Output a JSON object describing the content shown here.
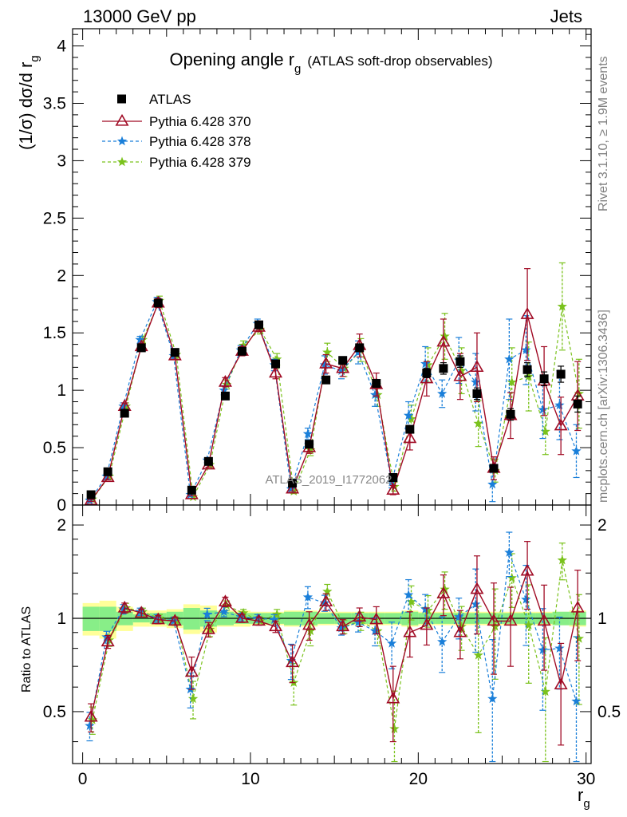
{
  "header": {
    "left": "13000 GeV pp",
    "right": "Jets"
  },
  "side_labels": {
    "rivet": "Rivet 3.1.10, ≥ 1.9M events",
    "mcplots": "mcplots.cern.ch [arXiv:1306.3436]"
  },
  "watermark": "ATLAS_2019_I1772062",
  "colors": {
    "data": "#000000",
    "py370": "#a00a24",
    "py378": "#1a7fd9",
    "py379": "#7ac21c",
    "band_inner": "#88ee88",
    "band_outer": "#ffff99"
  },
  "chart_data": [
    {
      "type": "scatter",
      "panel": "main",
      "title": "Opening angle r",
      "title_sub": "g",
      "title_suffix": "(ATLAS soft-drop observables)",
      "ylabel": "(1/σ) dσ/d r",
      "ylabel_sub": "g",
      "xlim": [
        -0.6,
        30.3
      ],
      "ylim": [
        0,
        4.15
      ],
      "yticks": [
        0,
        0.5,
        1,
        1.5,
        2,
        2.5,
        3,
        3.5,
        4
      ],
      "ytick_labels": [
        "0",
        "0.5",
        "1",
        "1.5",
        "2",
        "2.5",
        "3",
        "3.5",
        "4"
      ],
      "legend_placement": "top-left",
      "x": [
        0.5,
        1.5,
        2.5,
        3.5,
        4.5,
        5.5,
        6.5,
        7.5,
        8.5,
        9.5,
        10.5,
        11.5,
        12.5,
        13.5,
        14.5,
        15.5,
        16.5,
        17.5,
        18.5,
        19.5,
        20.5,
        21.5,
        22.5,
        23.5,
        24.5,
        25.5,
        26.5,
        27.5,
        28.5,
        29.5
      ],
      "series": [
        {
          "name": "ATLAS",
          "marker": "square",
          "values": [
            0.09,
            0.29,
            0.8,
            1.37,
            1.76,
            1.33,
            0.13,
            0.38,
            0.95,
            1.34,
            1.57,
            1.23,
            0.19,
            0.53,
            1.09,
            1.26,
            1.37,
            1.06,
            0.24,
            0.66,
            1.15,
            1.19,
            1.25,
            0.97,
            0.32,
            0.79,
            1.18,
            1.1,
            1.14,
            0.88
          ],
          "errors": [
            0.01,
            0.01,
            0.02,
            0.02,
            0.03,
            0.02,
            0.01,
            0.02,
            0.02,
            0.02,
            0.02,
            0.02,
            0.01,
            0.02,
            0.03,
            0.03,
            0.03,
            0.03,
            0.02,
            0.03,
            0.04,
            0.05,
            0.05,
            0.05,
            0.03,
            0.05,
            0.06,
            0.06,
            0.07,
            0.07
          ]
        },
        {
          "name": "Pythia 6.428 370",
          "marker": "triangle-open",
          "line": "solid",
          "values": [
            0.04,
            0.24,
            0.86,
            1.38,
            1.76,
            1.3,
            0.09,
            0.35,
            1.07,
            1.34,
            1.55,
            1.15,
            0.14,
            0.5,
            1.23,
            1.19,
            1.39,
            1.05,
            0.13,
            0.58,
            1.1,
            1.42,
            1.12,
            1.2,
            0.32,
            0.78,
            1.66,
            1.08,
            0.69,
            0.95
          ],
          "errors": [
            0.01,
            0.02,
            0.03,
            0.03,
            0.04,
            0.03,
            0.01,
            0.02,
            0.04,
            0.04,
            0.04,
            0.05,
            0.02,
            0.05,
            0.08,
            0.07,
            0.1,
            0.1,
            0.04,
            0.1,
            0.15,
            0.2,
            0.2,
            0.3,
            0.1,
            0.2,
            0.4,
            0.3,
            0.25,
            0.3
          ]
        },
        {
          "name": "Pythia 6.428 378",
          "marker": "star",
          "line": "dashed",
          "values": [
            0.04,
            0.25,
            0.86,
            1.44,
            1.77,
            1.3,
            0.09,
            0.39,
            1.0,
            1.35,
            1.58,
            1.22,
            0.14,
            0.62,
            1.22,
            1.17,
            1.33,
            0.96,
            0.2,
            0.78,
            1.23,
            0.97,
            1.26,
            1.07,
            0.18,
            1.27,
            1.35,
            0.83,
            0.87,
            0.47
          ],
          "errors": [
            0.01,
            0.02,
            0.03,
            0.03,
            0.04,
            0.03,
            0.01,
            0.02,
            0.04,
            0.04,
            0.04,
            0.05,
            0.02,
            0.05,
            0.08,
            0.07,
            0.1,
            0.1,
            0.05,
            0.12,
            0.15,
            0.12,
            0.2,
            0.25,
            0.15,
            0.35,
            0.3,
            0.25,
            0.3,
            0.23
          ]
        },
        {
          "name": "Pythia 6.428 379",
          "marker": "star",
          "line": "dashed",
          "values": [
            0.05,
            0.25,
            0.86,
            1.44,
            1.78,
            1.31,
            0.07,
            0.35,
            1.05,
            1.39,
            1.53,
            1.27,
            0.12,
            0.48,
            1.33,
            1.19,
            1.35,
            0.96,
            0.16,
            0.75,
            1.22,
            1.47,
            1.17,
            0.71,
            0.3,
            1.07,
            1.12,
            0.64,
            1.73,
            0.97
          ],
          "errors": [
            0.01,
            0.02,
            0.03,
            0.03,
            0.04,
            0.03,
            0.01,
            0.02,
            0.04,
            0.04,
            0.04,
            0.05,
            0.02,
            0.05,
            0.08,
            0.07,
            0.1,
            0.1,
            0.04,
            0.12,
            0.15,
            0.2,
            0.2,
            0.2,
            0.1,
            0.3,
            0.3,
            0.2,
            0.38,
            0.3
          ]
        }
      ]
    },
    {
      "type": "scatter",
      "panel": "ratio",
      "xlabel": "r",
      "xlabel_sub": "g",
      "ylabel": "Ratio to ATLAS",
      "xlim": [
        -0.6,
        30.3
      ],
      "ylim": [
        0.34,
        2.32
      ],
      "log_y": true,
      "yticks": [
        0.5,
        1,
        2
      ],
      "ytick_labels": [
        "0.5",
        "1",
        "2"
      ],
      "xticks": [
        0,
        10,
        20,
        30
      ],
      "xtick_labels": [
        "0",
        "10",
        "20",
        "30"
      ],
      "reference_line": 1,
      "band_inner_halfwidth": [
        0.09,
        0.09,
        0.05,
        0.03,
        0.04,
        0.05,
        0.08,
        0.06,
        0.05,
        0.04,
        0.04,
        0.04,
        0.05,
        0.05,
        0.04,
        0.04,
        0.04,
        0.04,
        0.04,
        0.05,
        0.04,
        0.04,
        0.04,
        0.04,
        0.04,
        0.04,
        0.04,
        0.04,
        0.05,
        0.05
      ],
      "band_outer_halfwidth": [
        0.12,
        0.14,
        0.09,
        0.06,
        0.06,
        0.07,
        0.11,
        0.1,
        0.06,
        0.06,
        0.05,
        0.05,
        0.06,
        0.06,
        0.05,
        0.05,
        0.05,
        0.05,
        0.05,
        0.06,
        0.05,
        0.05,
        0.05,
        0.05,
        0.05,
        0.05,
        0.05,
        0.05,
        0.05,
        0.06
      ],
      "series": [
        {
          "name": "Pythia 6.428 370",
          "values": [
            0.48,
            0.84,
            1.08,
            1.04,
            0.99,
            0.98,
            0.67,
            0.92,
            1.13,
            1.0,
            0.98,
            0.94,
            0.72,
            0.95,
            1.13,
            0.94,
            1.01,
            0.99,
            0.55,
            0.9,
            0.95,
            1.2,
            0.9,
            1.24,
            0.98,
            0.98,
            1.42,
            0.98,
            0.61,
            1.08
          ],
          "errors": [
            0.05,
            0.04,
            0.04,
            0.03,
            0.03,
            0.03,
            0.08,
            0.05,
            0.04,
            0.03,
            0.03,
            0.04,
            0.1,
            0.1,
            0.07,
            0.05,
            0.07,
            0.1,
            0.15,
            0.15,
            0.13,
            0.18,
            0.16,
            0.35,
            0.32,
            0.28,
            0.35,
            0.3,
            0.22,
            0.35
          ]
        },
        {
          "name": "Pythia 6.428 378",
          "values": [
            0.45,
            0.87,
            1.07,
            1.05,
            1.0,
            0.98,
            0.59,
            1.03,
            1.05,
            1.01,
            1.0,
            0.99,
            0.73,
            1.17,
            1.12,
            0.93,
            0.97,
            0.91,
            0.83,
            1.19,
            1.07,
            0.84,
            1.01,
            1.11,
            0.55,
            1.63,
            1.15,
            0.79,
            0.8,
            0.54
          ]
        },
        {
          "name": "Pythia 6.428 379",
          "values": [
            0.47,
            0.85,
            1.08,
            1.05,
            1.0,
            0.98,
            0.55,
            0.92,
            1.1,
            1.04,
            0.98,
            1.03,
            0.62,
            0.91,
            1.22,
            0.94,
            0.98,
            0.91,
            0.44,
            1.13,
            1.06,
            1.24,
            0.94,
            0.76,
            0.94,
            1.35,
            0.95,
            0.58,
            1.54,
            0.86
          ]
        }
      ]
    }
  ]
}
